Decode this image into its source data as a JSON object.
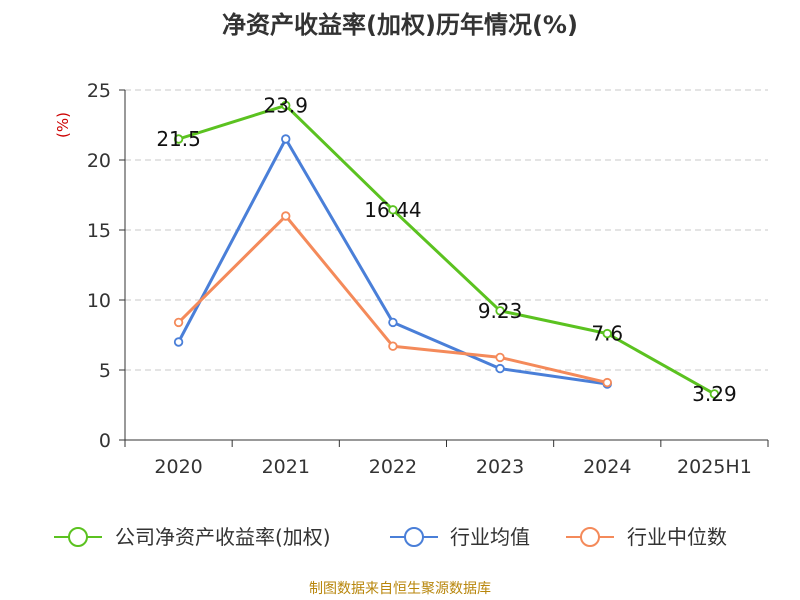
{
  "chart_data": {
    "type": "line",
    "title": "净资产收益率(加权)历年情况(%)",
    "ylabel": "(%)",
    "xlabel": "",
    "categories": [
      "2020",
      "2021",
      "2022",
      "2023",
      "2024",
      "2025H1"
    ],
    "ylim": [
      0,
      25
    ],
    "yticks": [
      0,
      5,
      10,
      15,
      20,
      25
    ],
    "grid": true,
    "legend_position": "bottom",
    "series": [
      {
        "name": "公司净资产收益率(加权)",
        "color": "#5bc220",
        "values": [
          21.5,
          23.9,
          16.44,
          9.23,
          7.6,
          3.29
        ],
        "labels": [
          "21.5",
          "23.9",
          "16.44",
          "9.23",
          "7.6",
          "3.29"
        ]
      },
      {
        "name": "行业均值",
        "color": "#4a7fd8",
        "values": [
          7.0,
          21.5,
          8.4,
          5.1,
          4.0,
          null
        ]
      },
      {
        "name": "行业中位数",
        "color": "#f48a5a",
        "values": [
          8.4,
          16.0,
          6.7,
          5.9,
          4.1,
          null
        ]
      }
    ],
    "source": "制图数据来自恒生聚源数据库"
  }
}
